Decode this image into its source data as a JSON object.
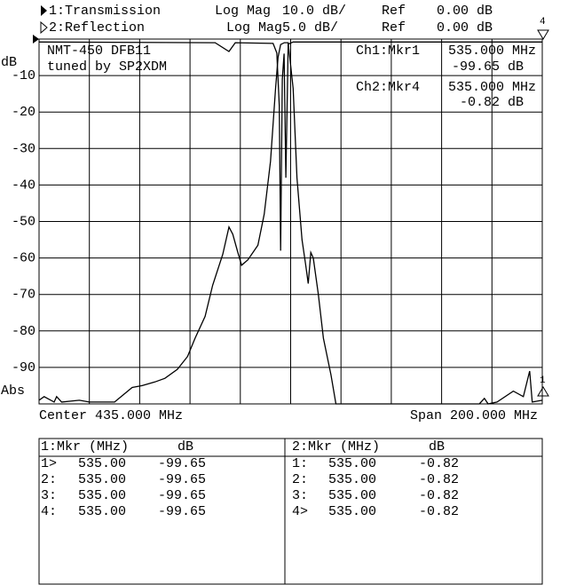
{
  "header": {
    "channels": [
      {
        "format": "Log Mag",
        "scale": "10.0 dB/",
        "ref_label": "Ref",
        "ref": "0.00 dB"
      },
      {
        "format": "Log Mag",
        "scale": "5.0 dB/",
        "ref_label": "Ref",
        "ref": "0.00 dB"
      }
    ]
  },
  "chart_data": {
    "type": "line",
    "y_label": "dB",
    "y_bottom_label": "Abs",
    "xlim": [
      335,
      535
    ],
    "ylim": [
      -100,
      0
    ],
    "y2lim": [
      -50,
      0
    ],
    "yticks": [
      -90,
      -80,
      -70,
      -60,
      -50,
      -40,
      -30,
      -20,
      -10
    ],
    "grid": true,
    "annotations": [
      "NMT-450 DFB11",
      "tuned by SP2XDM"
    ],
    "markers": [
      {
        "label": "Ch1:Mkr1",
        "freq": "535.000 MHz",
        "value": "-99.65 dB"
      },
      {
        "label": "Ch2:Mkr4",
        "freq": "535.000 MHz",
        "value": "-0.82 dB"
      }
    ],
    "center_label": "Center 435.000 MHz",
    "span_label": "Span 200.000 MHz",
    "edge_labels": [
      "4",
      "1"
    ],
    "series": [
      {
        "name": "1:Transmission",
        "color": "#000000",
        "x": [
          335,
          337,
          341,
          342,
          344,
          351,
          355,
          358,
          365,
          372,
          376,
          381,
          385,
          390,
          394,
          397,
          401,
          404,
          408,
          410.5,
          412,
          414,
          415.5,
          418,
          422,
          424.5,
          427,
          429,
          430,
          431,
          432.5,
          434,
          436,
          437.5,
          439.5,
          441,
          442,
          443,
          444,
          446,
          448,
          451,
          453,
          478,
          510,
          512,
          513.5,
          517,
          523.5,
          527.5,
          530,
          531,
          535
        ],
        "values": [
          -99,
          -98,
          -99.5,
          -98,
          -99.5,
          -99,
          -99.5,
          -99.5,
          -99.5,
          -95.5,
          -95,
          -94,
          -93,
          -90.5,
          -87,
          -82,
          -76,
          -67.5,
          -59,
          -51.5,
          -53.5,
          -58.5,
          -62,
          -60.5,
          -56.5,
          -48,
          -33.5,
          -13.5,
          -5,
          -1.5,
          -1,
          -1,
          -13.5,
          -38,
          -55,
          -62,
          -67,
          -58.5,
          -60,
          -70,
          -82,
          -92,
          -100,
          -100,
          -100,
          -98.5,
          -100,
          -99.5,
          -96.5,
          -98,
          -91,
          -99.5,
          -99
        ]
      },
      {
        "name": "2:Reflection",
        "color": "#000000",
        "axis": "y2",
        "x": [
          335,
          405,
          410.5,
          413,
          428,
          429.5,
          430.5,
          431,
          431.7,
          432.4,
          433.1,
          434,
          436,
          535
        ],
        "values": [
          -0.4,
          -0.5,
          -1.7,
          -0.5,
          -0.6,
          -1.9,
          -9.2,
          -29,
          -5.5,
          -2,
          -19,
          -0.7,
          -0.4,
          -0.4
        ]
      }
    ]
  },
  "marker_tables": [
    {
      "header": [
        "1:Mkr (MHz)",
        "dB"
      ],
      "rows": [
        [
          "1>",
          "535.00",
          "-99.65"
        ],
        [
          "2:",
          "535.00",
          "-99.65"
        ],
        [
          "3:",
          "535.00",
          "-99.65"
        ],
        [
          "4:",
          "535.00",
          "-99.65"
        ]
      ]
    },
    {
      "header": [
        "2:Mkr (MHz)",
        "dB"
      ],
      "rows": [
        [
          "1:",
          "535.00",
          "-0.82"
        ],
        [
          "2:",
          "535.00",
          "-0.82"
        ],
        [
          "3:",
          "535.00",
          "-0.82"
        ],
        [
          "4>",
          "535.00",
          "-0.82"
        ]
      ]
    }
  ]
}
